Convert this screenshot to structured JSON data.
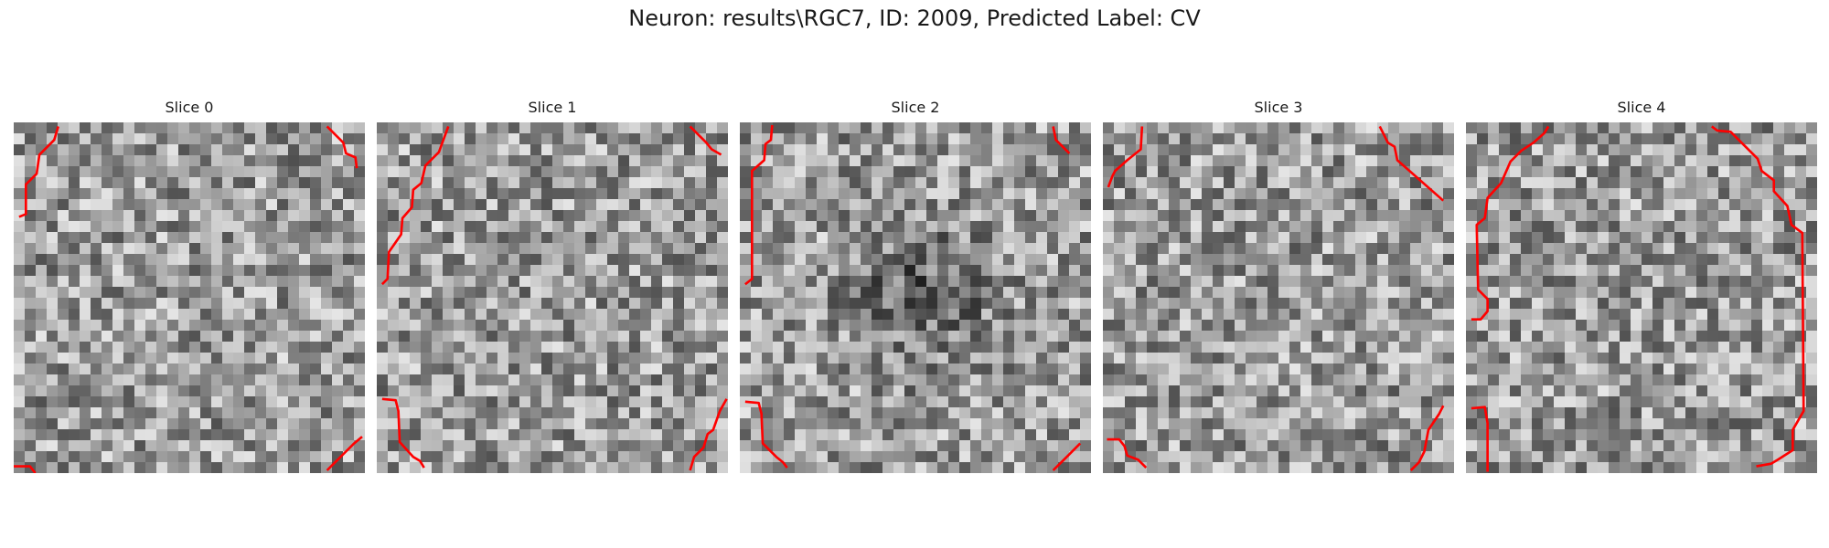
{
  "figure": {
    "title": "Neuron: results\\RGC7, ID: 2009, Predicted Label: CV"
  },
  "grid_size": 32,
  "slices": [
    {
      "title": "Slice 0",
      "seed": 11,
      "dark_blob": false
    },
    {
      "title": "Slice 1",
      "seed": 23,
      "dark_blob": false
    },
    {
      "title": "Slice 2",
      "seed": 37,
      "dark_blob": true
    },
    {
      "title": "Slice 3",
      "seed": 51,
      "dark_blob": false
    },
    {
      "title": "Slice 4",
      "seed": 67,
      "dark_blob": false
    }
  ],
  "colors": {
    "contour": "#ff0000",
    "background": "#ffffff"
  }
}
